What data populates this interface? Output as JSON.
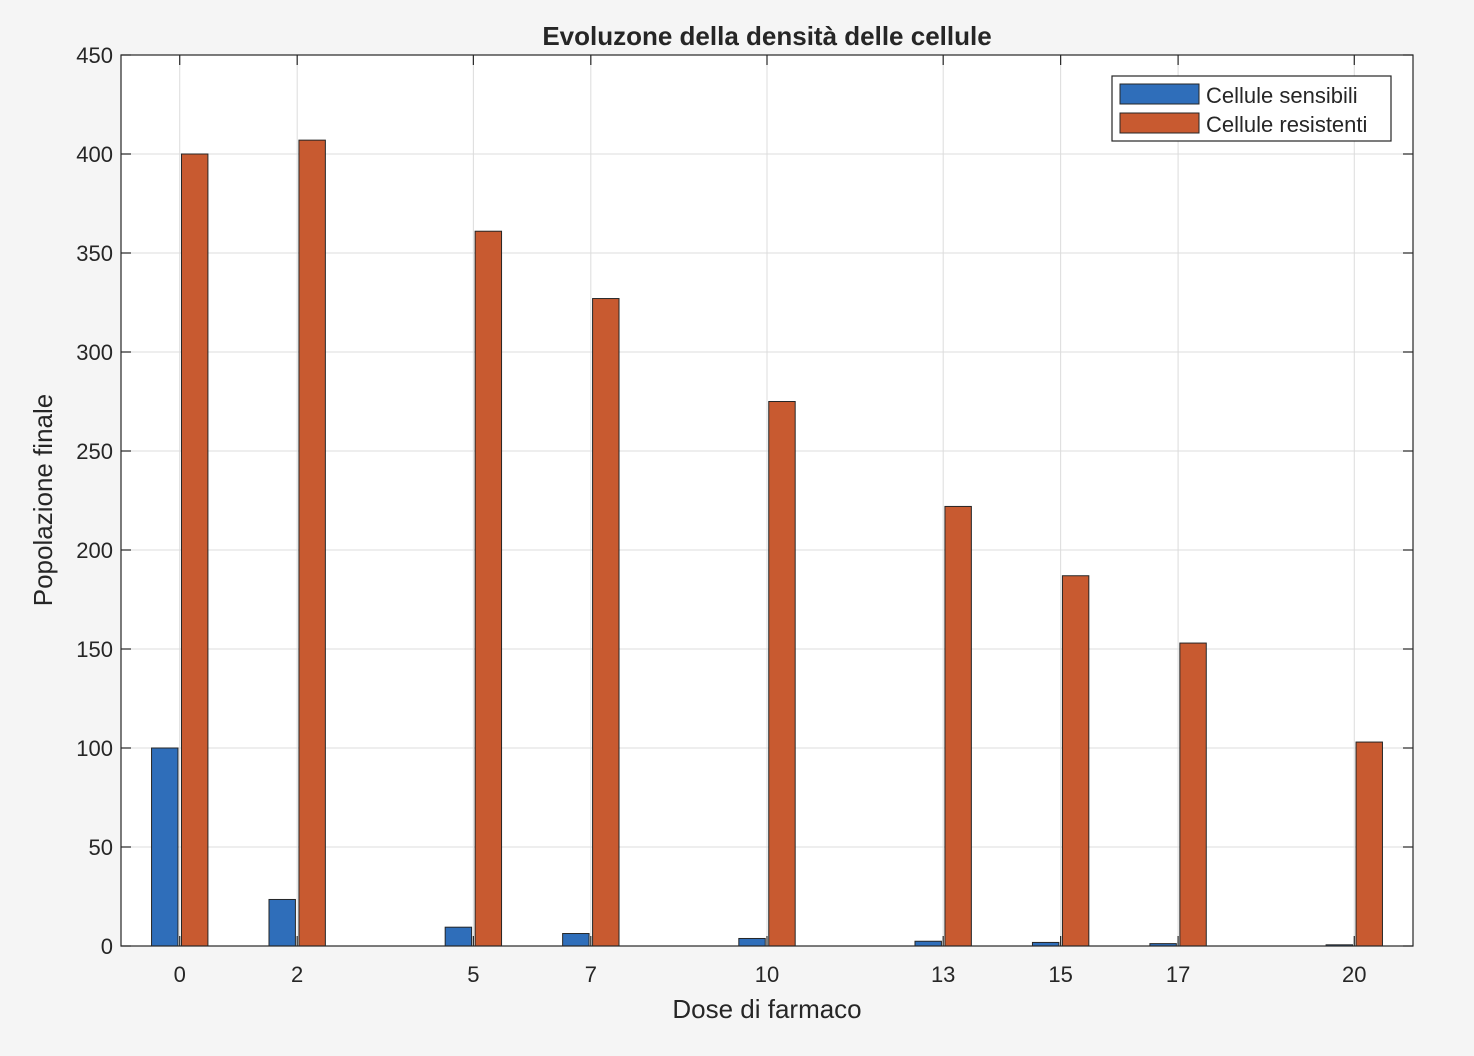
{
  "chart_data": {
    "type": "bar",
    "title": "Evoluzone della densità delle cellule",
    "xlabel": "Dose di farmaco",
    "ylabel": "Popolazione finale",
    "x": [
      0,
      2,
      5,
      7,
      10,
      13,
      15,
      17,
      20
    ],
    "xticks": [
      "0",
      "2",
      "5",
      "7",
      "10",
      "13",
      "15",
      "17",
      "20"
    ],
    "xlim": [
      -1,
      21
    ],
    "ylim": [
      0,
      450
    ],
    "yticks": [
      "0",
      "50",
      "100",
      "150",
      "200",
      "250",
      "300",
      "350",
      "400",
      "450"
    ],
    "grid": true,
    "legend_position": "top-right",
    "series": [
      {
        "name": "Cellule sensibili",
        "color": "#2f6eba",
        "values": [
          100,
          23.5,
          9.5,
          6.3,
          3.8,
          2.4,
          1.8,
          1.2,
          0.6
        ]
      },
      {
        "name": "Cellule resistenti",
        "color": "#c85a30",
        "values": [
          400,
          407,
          361,
          327,
          275,
          222,
          187,
          153,
          103
        ]
      }
    ]
  }
}
